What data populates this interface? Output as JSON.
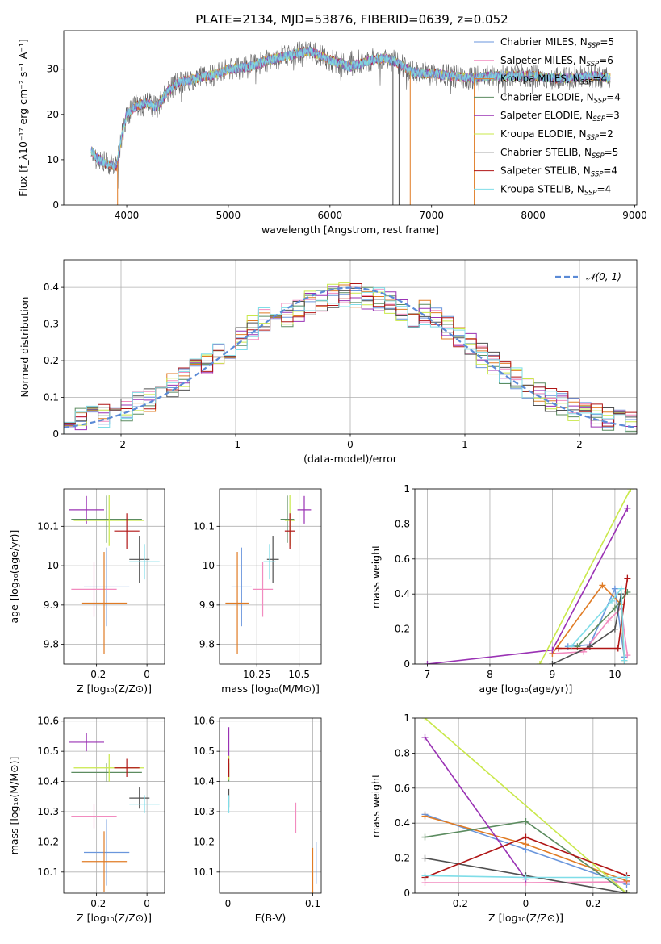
{
  "title": "PLATE=2134, MJD=53876, FIBERID=0639, z=0.052",
  "colors": {
    "Chabrier MILES": "#6a96dc",
    "Salpeter MILES": "#f28bbf",
    "Kroupa MILES": "#e07b24",
    "Chabrier ELODIE": "#5c8c60",
    "Salpeter ELODIE": "#9a32b4",
    "Kroupa ELODIE": "#c9e84a",
    "Chabrier STELIB": "#505050",
    "Salpeter STELIB": "#b01515",
    "Kroupa STELIB": "#7fdde8",
    "normal": "#5a8ad6"
  },
  "chart_data": [
    {
      "id": "spectrum",
      "type": "line",
      "xlabel": "wavelength [Angstrom, rest frame]",
      "ylabel": "Flux [f_λ10⁻¹⁷ erg cm⁻² s⁻¹ A⁻¹]",
      "xlim": [
        3380,
        9020
      ],
      "ylim": [
        0,
        38.5
      ],
      "xticks": [
        4000,
        5000,
        6000,
        7000,
        8000,
        9000
      ],
      "yticks": [
        0,
        10,
        20,
        30
      ],
      "legend_position": "upper right",
      "legend": [
        {
          "base": "Chabrier MILES, N",
          "sub": "SSP",
          "tail": "=5"
        },
        {
          "base": "Salpeter MILES, N",
          "sub": "SSP",
          "tail": "=6"
        },
        {
          "base": "Kroupa MILES, N",
          "sub": "SSP",
          "tail": "=4"
        },
        {
          "base": "Chabrier ELODIE, N",
          "sub": "SSP",
          "tail": "=4"
        },
        {
          "base": "Salpeter ELODIE, N",
          "sub": "SSP",
          "tail": "=3"
        },
        {
          "base": "Kroupa ELODIE, N",
          "sub": "SSP",
          "tail": "=2"
        },
        {
          "base": "Chabrier STELIB, N",
          "sub": "SSP",
          "tail": "=5"
        },
        {
          "base": "Salpeter STELIB, N",
          "sub": "SSP",
          "tail": "=4"
        },
        {
          "base": "Kroupa STELIB, N",
          "sub": "SSP",
          "tail": "=4"
        }
      ],
      "data_envelope": {
        "x": [
          3650,
          3700,
          3800,
          3900,
          3950,
          4000,
          4100,
          4200,
          4300,
          4400,
          4500,
          4700,
          4900,
          5000,
          5200,
          5400,
          5600,
          5800,
          5900,
          6000,
          6200,
          6400,
          6550,
          6700,
          6800,
          6900,
          7000,
          7200,
          7400,
          7600,
          7800,
          8000,
          8200,
          8400,
          8600,
          8760
        ],
        "y": [
          12,
          10.5,
          9,
          8.5,
          15,
          20,
          22,
          22.5,
          21.5,
          25,
          27,
          28,
          29,
          30,
          30.5,
          32,
          33,
          34,
          33,
          32,
          30.5,
          32,
          32.5,
          31,
          29.5,
          29,
          29,
          28.5,
          28,
          28.5,
          28.5,
          28.5,
          28,
          28,
          28.5,
          28
        ]
      },
      "spikes": [
        {
          "x": 3910,
          "color": "Kroupa MILES"
        },
        {
          "x": 6620,
          "color": "Chabrier STELIB"
        },
        {
          "x": 6680,
          "color": "Chabrier STELIB"
        },
        {
          "x": 6790,
          "color": "Kroupa MILES"
        },
        {
          "x": 7420,
          "color": "Kroupa MILES"
        }
      ]
    },
    {
      "id": "residuals",
      "type": "histogram",
      "xlabel": "(data-model)/error",
      "ylabel": "Normed distribution",
      "xlim": [
        -2.5,
        2.5
      ],
      "ylim": [
        0,
        0.475
      ],
      "xticks": [
        -2,
        -1,
        0,
        1,
        2
      ],
      "yticks": [
        0,
        0.1,
        0.2,
        0.3,
        0.4
      ],
      "grid": true,
      "legend": "𝒩(0, 1)",
      "bins": {
        "start": -2.5,
        "width": 0.1,
        "count": 50
      }
    },
    {
      "id": "age-vs-Z",
      "type": "errorbar",
      "xlabel": "Z [log₁₀(Z/Z⊙)]",
      "ylabel": "age  [log₁₀(age/yr)]",
      "xlim": [
        -0.33,
        0.07
      ],
      "ylim": [
        9.75,
        10.195
      ],
      "xticks": [
        -0.2,
        0.0
      ],
      "yticks": [
        9.8,
        9.9,
        10.0,
        10.1
      ],
      "grid": true,
      "points": [
        {
          "model": "Chabrier MILES",
          "x": -0.16,
          "xerr": 0.09,
          "y": 9.946,
          "yerr": 0.1
        },
        {
          "model": "Salpeter MILES",
          "x": -0.21,
          "xerr": 0.09,
          "y": 9.94,
          "yerr": 0.07
        },
        {
          "model": "Kroupa MILES",
          "x": -0.17,
          "xerr": 0.09,
          "y": 9.905,
          "yerr": 0.13
        },
        {
          "model": "Chabrier ELODIE",
          "x": -0.16,
          "xerr": 0.14,
          "y": 10.118,
          "yerr": 0.06
        },
        {
          "model": "Salpeter ELODIE",
          "x": -0.24,
          "xerr": 0.07,
          "y": 10.142,
          "yerr": 0.035
        },
        {
          "model": "Kroupa ELODIE",
          "x": -0.15,
          "xerr": 0.14,
          "y": 10.115,
          "yerr": 0.065
        },
        {
          "model": "Chabrier STELIB",
          "x": -0.03,
          "xerr": 0.04,
          "y": 10.016,
          "yerr": 0.06
        },
        {
          "model": "Salpeter STELIB",
          "x": -0.08,
          "xerr": 0.05,
          "y": 10.088,
          "yerr": 0.045
        },
        {
          "model": "Kroupa STELIB",
          "x": -0.01,
          "xerr": 0.06,
          "y": 10.01,
          "yerr": 0.045
        }
      ]
    },
    {
      "id": "age-vs-mass",
      "type": "errorbar",
      "xlabel": "mass [log₁₀(M/M⊙)]",
      "ylabel": "",
      "xlim": [
        10.03,
        10.63
      ],
      "ylim": [
        9.75,
        10.195
      ],
      "xticks": [
        10.25,
        10.5
      ],
      "yticks": [
        9.8,
        9.9,
        10.0,
        10.1
      ],
      "grid": true,
      "points": [
        {
          "model": "Chabrier MILES",
          "x": 10.16,
          "xerr": 0.06,
          "y": 9.946,
          "yerr": 0.1
        },
        {
          "model": "Salpeter MILES",
          "x": 10.285,
          "xerr": 0.06,
          "y": 9.94,
          "yerr": 0.07
        },
        {
          "model": "Kroupa MILES",
          "x": 10.135,
          "xerr": 0.07,
          "y": 9.905,
          "yerr": 0.13
        },
        {
          "model": "Chabrier ELODIE",
          "x": 10.43,
          "xerr": 0.04,
          "y": 10.118,
          "yerr": 0.06
        },
        {
          "model": "Salpeter ELODIE",
          "x": 10.53,
          "xerr": 0.04,
          "y": 10.142,
          "yerr": 0.035
        },
        {
          "model": "Kroupa ELODIE",
          "x": 10.445,
          "xerr": 0.03,
          "y": 10.115,
          "yerr": 0.065
        },
        {
          "model": "Chabrier STELIB",
          "x": 10.345,
          "xerr": 0.035,
          "y": 10.016,
          "yerr": 0.06
        },
        {
          "model": "Salpeter STELIB",
          "x": 10.445,
          "xerr": 0.03,
          "y": 10.088,
          "yerr": 0.045
        },
        {
          "model": "Kroupa STELIB",
          "x": 10.325,
          "xerr": 0.035,
          "y": 10.01,
          "yerr": 0.045
        }
      ]
    },
    {
      "id": "mass-weight-vs-age",
      "type": "line",
      "xlabel": "age  [log₁₀(age/yr)]",
      "ylabel": "mass weight",
      "xlim": [
        6.8,
        10.35
      ],
      "ylim": [
        0,
        1.0
      ],
      "xticks": [
        7,
        8,
        9,
        10
      ],
      "yticks": [
        0,
        0.2,
        0.4,
        0.6,
        0.8,
        1.0
      ],
      "grid": true,
      "series": [
        {
          "model": "Chabrier MILES",
          "x": [
            9.25,
            9.6,
            10.0,
            10.15
          ],
          "y": [
            0.1,
            0.11,
            0.43,
            0.04
          ]
        },
        {
          "model": "Salpeter MILES",
          "x": [
            9.0,
            9.5,
            9.9,
            10.1,
            10.2
          ],
          "y": [
            0.06,
            0.07,
            0.25,
            0.32,
            0.05
          ]
        },
        {
          "model": "Kroupa MILES",
          "x": [
            9.0,
            9.8,
            10.1,
            10.15
          ],
          "y": [
            0.06,
            0.45,
            0.34,
            0.02
          ]
        },
        {
          "model": "Chabrier ELODIE",
          "x": [
            9.4,
            10.0,
            10.2
          ],
          "y": [
            0.1,
            0.32,
            0.41
          ]
        },
        {
          "model": "Salpeter ELODIE",
          "x": [
            7.0,
            9.0,
            10.2
          ],
          "y": [
            0.0,
            0.08,
            0.89
          ]
        },
        {
          "model": "Kroupa ELODIE",
          "x": [
            8.8,
            10.25
          ],
          "y": [
            0.0,
            1.0
          ]
        },
        {
          "model": "Chabrier STELIB",
          "x": [
            9.0,
            9.6,
            10.0,
            10.1
          ],
          "y": [
            0.0,
            0.1,
            0.2,
            0.4
          ]
        },
        {
          "model": "Salpeter STELIB",
          "x": [
            9.1,
            10.05,
            10.2
          ],
          "y": [
            0.09,
            0.09,
            0.49
          ]
        },
        {
          "model": "Kroupa STELIB",
          "x": [
            9.3,
            9.95,
            10.1,
            10.15
          ],
          "y": [
            0.1,
            0.36,
            0.43,
            0.02
          ]
        }
      ]
    },
    {
      "id": "mass-vs-Z",
      "type": "errorbar",
      "xlabel": "Z [log₁₀(Z/Z⊙)]",
      "ylabel": "mass [log₁₀(M/M⊙)]",
      "xlim": [
        -0.33,
        0.07
      ],
      "ylim": [
        10.03,
        10.61
      ],
      "xticks": [
        -0.2,
        0.0
      ],
      "yticks": [
        10.1,
        10.2,
        10.3,
        10.4,
        10.5,
        10.6
      ],
      "grid": true,
      "points": [
        {
          "model": "Chabrier MILES",
          "x": -0.16,
          "xerr": 0.09,
          "y": 10.165,
          "yerr": 0.11
        },
        {
          "model": "Salpeter MILES",
          "x": -0.21,
          "xerr": 0.09,
          "y": 10.285,
          "yerr": 0.04
        },
        {
          "model": "Kroupa MILES",
          "x": -0.17,
          "xerr": 0.09,
          "y": 10.135,
          "yerr": 0.1
        },
        {
          "model": "Chabrier ELODIE",
          "x": -0.16,
          "xerr": 0.14,
          "y": 10.43,
          "yerr": 0.03
        },
        {
          "model": "Salpeter ELODIE",
          "x": -0.24,
          "xerr": 0.07,
          "y": 10.53,
          "yerr": 0.03
        },
        {
          "model": "Kroupa ELODIE",
          "x": -0.15,
          "xerr": 0.14,
          "y": 10.445,
          "yerr": 0.045
        },
        {
          "model": "Chabrier STELIB",
          "x": -0.03,
          "xerr": 0.04,
          "y": 10.345,
          "yerr": 0.035
        },
        {
          "model": "Salpeter STELIB",
          "x": -0.08,
          "xerr": 0.05,
          "y": 10.445,
          "yerr": 0.03
        },
        {
          "model": "Kroupa STELIB",
          "x": -0.01,
          "xerr": 0.06,
          "y": 10.325,
          "yerr": 0.03
        }
      ]
    },
    {
      "id": "mass-vs-EBV",
      "type": "errorbar",
      "xlabel": "E(B-V)",
      "ylabel": "",
      "xlim": [
        -0.01,
        0.11
      ],
      "ylim": [
        10.03,
        10.61
      ],
      "xticks": [
        0.0,
        0.1
      ],
      "yticks": [
        10.1,
        10.2,
        10.3,
        10.4,
        10.5,
        10.6
      ],
      "grid": true,
      "points": [
        {
          "model": "Chabrier MILES",
          "x": 0.104,
          "y": 10.13,
          "yerr": 0.07
        },
        {
          "model": "Salpeter MILES",
          "x": 0.08,
          "y": 10.28,
          "yerr": 0.05
        },
        {
          "model": "Kroupa MILES",
          "x": 0.1,
          "y": 10.1,
          "yerr": 0.08
        },
        {
          "model": "Chabrier ELODIE",
          "x": 0.001,
          "y": 10.43,
          "yerr": 0.03
        },
        {
          "model": "Salpeter ELODIE",
          "x": 0.001,
          "y": 10.53,
          "yerr": 0.05
        },
        {
          "model": "Kroupa ELODIE",
          "x": 0.001,
          "y": 10.445,
          "yerr": 0.04
        },
        {
          "model": "Chabrier STELIB",
          "x": 0.001,
          "y": 10.345,
          "yerr": 0.03
        },
        {
          "model": "Salpeter STELIB",
          "x": 0.001,
          "y": 10.445,
          "yerr": 0.03
        },
        {
          "model": "Kroupa STELIB",
          "x": 0.001,
          "y": 10.325,
          "yerr": 0.03
        }
      ]
    },
    {
      "id": "mass-weight-vs-Z",
      "type": "line",
      "xlabel": "Z [log₁₀(Z/Z⊙)]",
      "ylabel": "mass weight",
      "xlim": [
        -0.33,
        0.33
      ],
      "ylim": [
        0,
        1.0
      ],
      "xticks": [
        -0.2,
        0.0,
        0.2
      ],
      "yticks": [
        0,
        0.2,
        0.4,
        0.6,
        0.8,
        1.0
      ],
      "grid": true,
      "series": [
        {
          "model": "Chabrier MILES",
          "x": [
            -0.3,
            0.0,
            0.3
          ],
          "y": [
            0.45,
            0.25,
            0.05
          ]
        },
        {
          "model": "Salpeter MILES",
          "x": [
            -0.3,
            0.0,
            0.3
          ],
          "y": [
            0.06,
            0.06,
            0.065
          ]
        },
        {
          "model": "Kroupa MILES",
          "x": [
            -0.3,
            0.0,
            0.3
          ],
          "y": [
            0.44,
            0.28,
            0.07
          ]
        },
        {
          "model": "Chabrier ELODIE",
          "x": [
            -0.3,
            0.0,
            0.3
          ],
          "y": [
            0.32,
            0.41,
            0.0
          ]
        },
        {
          "model": "Salpeter ELODIE",
          "x": [
            -0.3,
            0.0
          ],
          "y": [
            0.89,
            0.08
          ]
        },
        {
          "model": "Kroupa ELODIE",
          "x": [
            -0.3,
            0.3
          ],
          "y": [
            1.0,
            0.0
          ]
        },
        {
          "model": "Chabrier STELIB",
          "x": [
            -0.3,
            0.0,
            0.3
          ],
          "y": [
            0.2,
            0.1,
            0.0
          ]
        },
        {
          "model": "Salpeter STELIB",
          "x": [
            -0.3,
            0.0,
            0.3
          ],
          "y": [
            0.09,
            0.32,
            0.1
          ]
        },
        {
          "model": "Kroupa STELIB",
          "x": [
            -0.3,
            0.0,
            0.3
          ],
          "y": [
            0.1,
            0.09,
            0.09
          ]
        }
      ]
    }
  ]
}
